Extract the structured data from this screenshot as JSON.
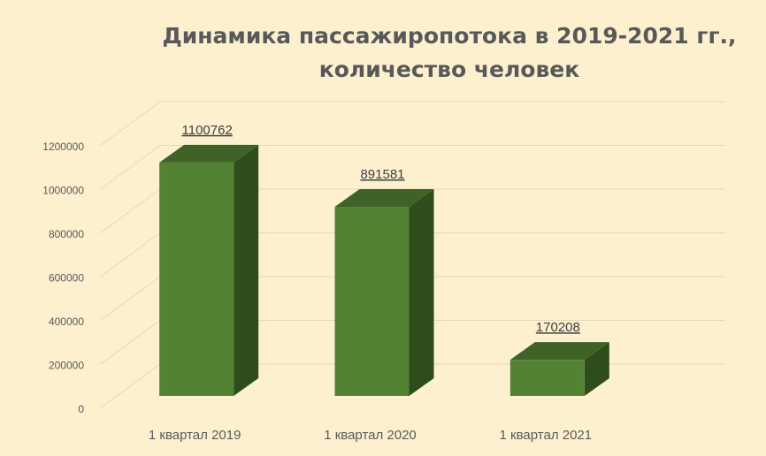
{
  "chart_data": {
    "type": "bar",
    "title_line1": "Динамика пассажиропотока в 2019-2021 гг.,",
    "title_line2": "количество человек",
    "categories": [
      "1 квартал 2019",
      "1 квартал 2020",
      "1 квартал 2021"
    ],
    "values": [
      1100762,
      891581,
      170208
    ],
    "data_labels": [
      "1100762",
      "891581",
      "170208"
    ],
    "yticks": [
      "0",
      "200000",
      "400000",
      "600000",
      "800000",
      "1000000",
      "1200000"
    ],
    "ylim": [
      0,
      1200000
    ],
    "xlabel": "",
    "ylabel": "",
    "grid": true,
    "bar_color": "#548235",
    "bar_top_color": "#3f6326",
    "bar_side_color": "#2f4d1b"
  }
}
